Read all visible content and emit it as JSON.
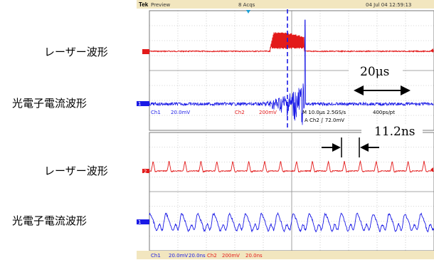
{
  "figure": {
    "labels": {
      "top_ch1": "レーザー波形",
      "top_ch2": "光電子電流波形",
      "bottom_ch1": "レーザー波形",
      "bottom_ch2": "光電子電流波形"
    },
    "annotations": {
      "duration": "20μs",
      "period": "11.2ns"
    },
    "scope": {
      "brand": "Tek",
      "mode": "Preview",
      "acqs": "8 Acqs",
      "date": "04 Jul 04 12:59:13",
      "top_readout": {
        "ch1": "Ch1",
        "ch1_scale": "20.0mV",
        "ch2": "Ch2",
        "ch2_scale": "200mV",
        "timebase": "M 10.0µs 2.5GS/s",
        "record": "400ps/pt",
        "trigger": "A Ch2 ∫ 72.0mV"
      },
      "bottom_readout": {
        "ch1": "Ch1",
        "ch1_scale": "20.0mV",
        "ch1_time": "20.0ns",
        "ch2": "Ch2",
        "ch2_scale": "200mV",
        "ch2_time": "20.0ns"
      },
      "marker_ch2": "2",
      "marker_ch1": "1"
    },
    "colors": {
      "laser": "#e31a1a",
      "photocurrent": "#1a1ae6",
      "cursor": "#1a1ae6",
      "trigger_arrow": "#e31a1a"
    }
  },
  "chart_data": [
    {
      "type": "line",
      "panel": "top",
      "grid": true,
      "x_unit": "µs",
      "xlim": [
        -50,
        50
      ],
      "divisions": 10,
      "series": [
        {
          "name": "レーザー波形",
          "envelope": {
            "on": [
              -7.5,
              4.4
            ],
            "peak_mV": 40,
            "baseline_mV": 0
          }
        },
        {
          "name": "光電子電流波形",
          "envelope": {
            "rise_start": -12,
            "peak": 3.5,
            "cutoff": 4.4,
            "peak_mV": 700
          }
        }
      ],
      "annotation_duration_us": 20
    },
    {
      "type": "line",
      "panel": "bottom",
      "grid": true,
      "x_unit": "ns",
      "xlim": [
        -100,
        100
      ],
      "divisions": 10,
      "pulse_period_ns": 11.2,
      "series": [
        {
          "name": "レーザー波形"
        },
        {
          "name": "光電子電流波形"
        }
      ]
    }
  ]
}
